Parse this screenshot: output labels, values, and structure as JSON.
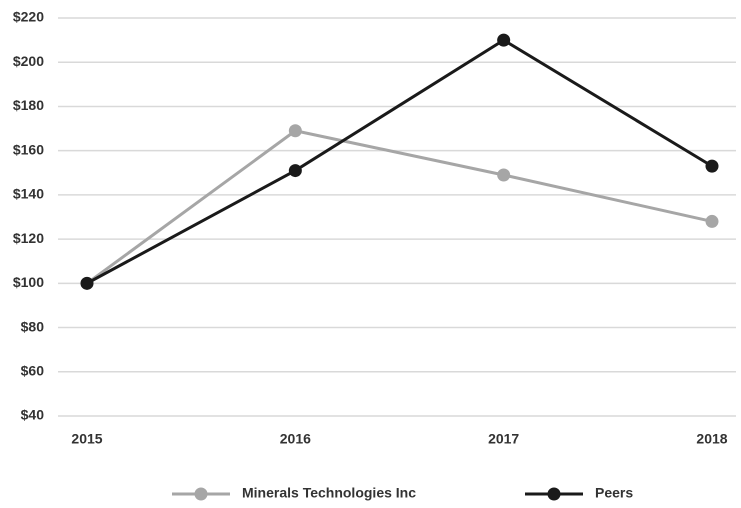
{
  "chart_data": {
    "type": "line",
    "categories": [
      "2015",
      "2016",
      "2017",
      "2018"
    ],
    "series": [
      {
        "name": "Minerals Technologies Inc",
        "color": "#a6a6a6",
        "values": [
          100,
          169,
          149,
          128
        ]
      },
      {
        "name": "Peers",
        "color": "#1a1a1a",
        "values": [
          100,
          151,
          210,
          153
        ]
      }
    ],
    "ylim": [
      40,
      220
    ],
    "yticks": [
      {
        "value": 40,
        "label": "$40"
      },
      {
        "value": 60,
        "label": "$60"
      },
      {
        "value": 80,
        "label": "$80"
      },
      {
        "value": 100,
        "label": "$100"
      },
      {
        "value": 120,
        "label": "$120"
      },
      {
        "value": 140,
        "label": "$140"
      },
      {
        "value": 160,
        "label": "$160"
      },
      {
        "value": 180,
        "label": "$180"
      },
      {
        "value": 200,
        "label": "$200"
      },
      {
        "value": 220,
        "label": "$220"
      }
    ],
    "grid": true,
    "legend": "bottom"
  }
}
